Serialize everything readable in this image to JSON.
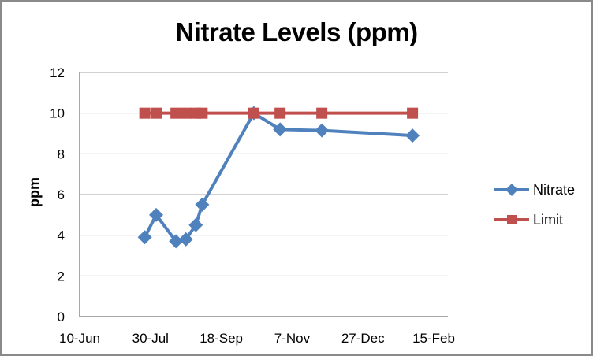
{
  "window": {
    "background": "#FFFFFF",
    "border_color": "#8A8A8A"
  },
  "chart_data": {
    "type": "line",
    "title": "Nitrate Levels (ppm)",
    "xlabel": "",
    "ylabel": "ppm",
    "grid": "horizontal-major",
    "legend_position": "right",
    "y_axis": {
      "min": 0,
      "max": 12,
      "step": 2,
      "tick_labels": [
        "0",
        "2",
        "4",
        "6",
        "8",
        "10",
        "12"
      ]
    },
    "x_axis": {
      "kind": "date",
      "tick_labels": [
        "10-Jun",
        "30-Jul",
        "18-Sep",
        "7-Nov",
        "27-Dec",
        "15-Feb"
      ],
      "tick_days": [
        0,
        50,
        100,
        150,
        200,
        250
      ],
      "axis_day_range": [
        0,
        260
      ],
      "tick_interval_days": 50
    },
    "series": [
      {
        "name": "Nitrate",
        "color": "#4F81BD",
        "marker": "diamond",
        "line_width": 4,
        "x_days": [
          46,
          54,
          68,
          75,
          82,
          86.5,
          123,
          141.5,
          171,
          235
        ],
        "values": [
          3.9,
          5.0,
          3.7,
          3.8,
          4.5,
          5.5,
          10.0,
          9.2,
          9.15,
          8.9
        ]
      },
      {
        "name": "Limit",
        "color": "#C0504D",
        "marker": "square",
        "line_width": 4,
        "x_days": [
          46,
          54,
          68,
          75,
          82,
          86.5,
          123,
          141.5,
          171,
          235
        ],
        "values": [
          10,
          10,
          10,
          10,
          10,
          10,
          10,
          10,
          10,
          10
        ]
      }
    ],
    "colors": {
      "gridline": "#A6A6A6",
      "axis_line": "#8C8C8C",
      "tick_text": "#000000"
    }
  },
  "legend": {
    "items": [
      {
        "label": "Nitrate"
      },
      {
        "label": "Limit"
      }
    ]
  }
}
